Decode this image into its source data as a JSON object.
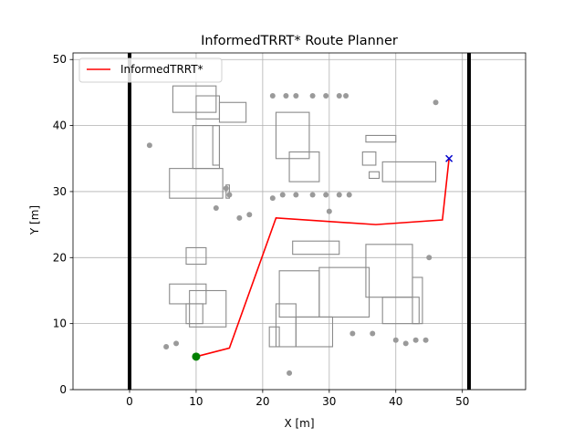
{
  "chart_data": {
    "type": "line",
    "title": "InformedTRRT* Route Planner",
    "xlabel": "X [m]",
    "ylabel": "Y [m]",
    "xlim": [
      -8.5,
      59.5
    ],
    "ylim": [
      0,
      51
    ],
    "xticks": [
      0,
      10,
      20,
      30,
      40,
      50
    ],
    "yticks": [
      0,
      10,
      20,
      30,
      40,
      50
    ],
    "grid": true,
    "legend_position": "top-left",
    "series": [
      {
        "name": "InformedTRRT*",
        "color": "#ff0000",
        "x": [
          10,
          15,
          22,
          37,
          47,
          48
        ],
        "y": [
          5,
          6.3,
          26,
          25,
          25.7,
          35
        ]
      }
    ],
    "start": {
      "x": 10,
      "y": 5,
      "color": "#008000",
      "marker": "circle"
    },
    "goal": {
      "x": 48,
      "y": 35,
      "color": "#0000cc",
      "marker": "x"
    },
    "boundary": {
      "x": [
        0,
        51
      ],
      "y": [
        0,
        51
      ],
      "color": "#000000"
    },
    "map_features": [
      {
        "x1": 6.5,
        "y1": 46,
        "x2": 13,
        "y2": 42
      },
      {
        "x1": 10,
        "y1": 44.5,
        "x2": 13.5,
        "y2": 41
      },
      {
        "x1": 13.5,
        "y1": 43.5,
        "x2": 17.5,
        "y2": 40.5
      },
      {
        "x1": 9.5,
        "y1": 40,
        "x2": 13.5,
        "y2": 33.5
      },
      {
        "x1": 12.5,
        "y1": 40,
        "x2": 13.5,
        "y2": 34
      },
      {
        "x1": 6,
        "y1": 33.5,
        "x2": 14,
        "y2": 29
      },
      {
        "x1": 14.5,
        "y1": 31,
        "x2": 15,
        "y2": 29
      },
      {
        "x1": 22,
        "y1": 42,
        "x2": 27,
        "y2": 35
      },
      {
        "x1": 24,
        "y1": 36,
        "x2": 28.5,
        "y2": 31.5
      },
      {
        "x1": 35.5,
        "y1": 38.5,
        "x2": 40,
        "y2": 37.5
      },
      {
        "x1": 35,
        "y1": 36,
        "x2": 37,
        "y2": 34
      },
      {
        "x1": 36,
        "y1": 33,
        "x2": 37.5,
        "y2": 32
      },
      {
        "x1": 38,
        "y1": 34.5,
        "x2": 46,
        "y2": 31.5
      },
      {
        "x1": 8.5,
        "y1": 21.5,
        "x2": 11.5,
        "y2": 19
      },
      {
        "x1": 6,
        "y1": 16,
        "x2": 11.5,
        "y2": 13
      },
      {
        "x1": 8.5,
        "y1": 13,
        "x2": 11,
        "y2": 10
      },
      {
        "x1": 9,
        "y1": 15,
        "x2": 14.5,
        "y2": 9.5
      },
      {
        "x1": 24.5,
        "y1": 22.5,
        "x2": 31.5,
        "y2": 20.5
      },
      {
        "x1": 22.5,
        "y1": 18,
        "x2": 28.5,
        "y2": 11
      },
      {
        "x1": 22,
        "y1": 13,
        "x2": 25,
        "y2": 6.5
      },
      {
        "x1": 25,
        "y1": 11,
        "x2": 30.5,
        "y2": 6.5
      },
      {
        "x1": 28.5,
        "y1": 18.5,
        "x2": 36,
        "y2": 11
      },
      {
        "x1": 35.5,
        "y1": 22,
        "x2": 42.5,
        "y2": 14
      },
      {
        "x1": 38,
        "y1": 14,
        "x2": 43.5,
        "y2": 10
      },
      {
        "x1": 42.5,
        "y1": 17,
        "x2": 44,
        "y2": 10
      },
      {
        "x1": 21,
        "y1": 9.5,
        "x2": 22.5,
        "y2": 6.5
      }
    ],
    "map_dots": [
      {
        "x": 21.5,
        "y": 44.5
      },
      {
        "x": 23.5,
        "y": 44.5
      },
      {
        "x": 25,
        "y": 44.5
      },
      {
        "x": 27.5,
        "y": 44.5
      },
      {
        "x": 29.5,
        "y": 44.5
      },
      {
        "x": 31.5,
        "y": 44.5
      },
      {
        "x": 32.5,
        "y": 44.5
      },
      {
        "x": 21.5,
        "y": 29
      },
      {
        "x": 23,
        "y": 29.5
      },
      {
        "x": 25,
        "y": 29.5
      },
      {
        "x": 27.5,
        "y": 29.5
      },
      {
        "x": 29.5,
        "y": 29.5
      },
      {
        "x": 31.5,
        "y": 29.5
      },
      {
        "x": 33,
        "y": 29.5
      },
      {
        "x": 14.5,
        "y": 30.5
      },
      {
        "x": 15,
        "y": 29.5
      },
      {
        "x": 46,
        "y": 43.5
      },
      {
        "x": 7,
        "y": 7
      },
      {
        "x": 5.5,
        "y": 6.5
      },
      {
        "x": 33.5,
        "y": 8.5
      },
      {
        "x": 36.5,
        "y": 8.5
      },
      {
        "x": 40,
        "y": 7.5
      },
      {
        "x": 41.5,
        "y": 7
      },
      {
        "x": 43,
        "y": 7.5
      },
      {
        "x": 44.5,
        "y": 7.5
      },
      {
        "x": 3,
        "y": 37
      },
      {
        "x": 13,
        "y": 27.5
      },
      {
        "x": 16.5,
        "y": 26
      },
      {
        "x": 45,
        "y": 20
      },
      {
        "x": 30,
        "y": 27
      },
      {
        "x": 24,
        "y": 2.5
      },
      {
        "x": 18,
        "y": 26.5
      }
    ]
  }
}
